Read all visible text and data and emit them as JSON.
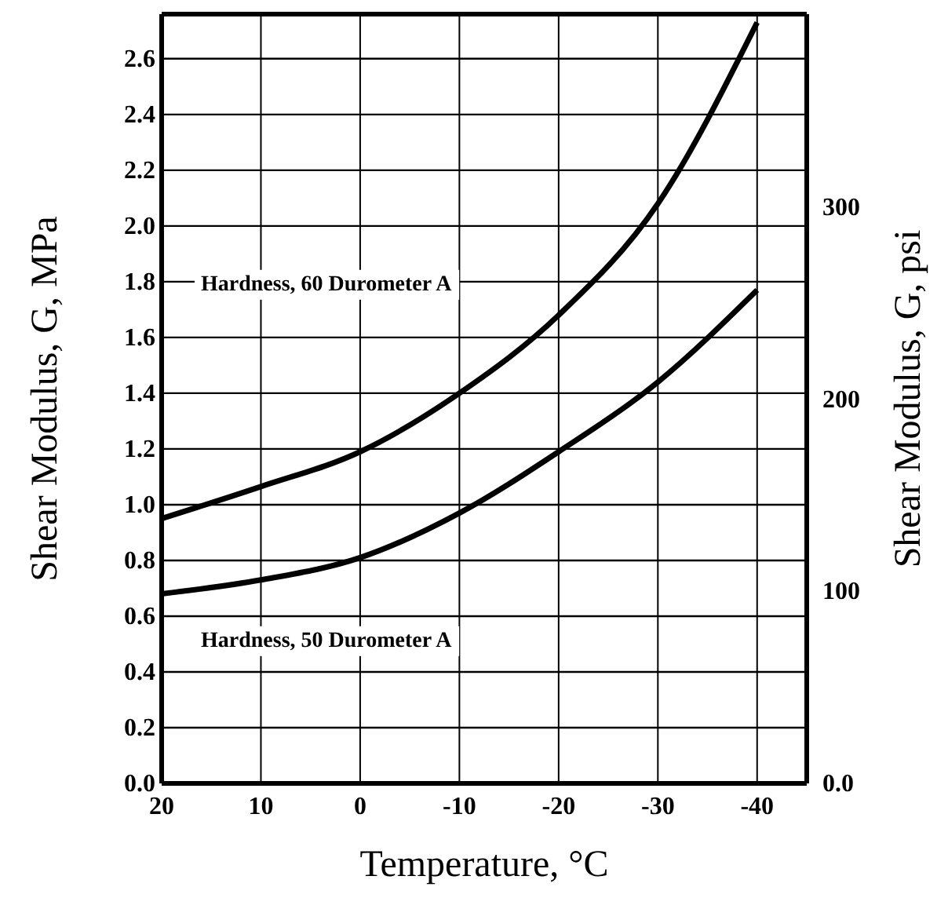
{
  "chart_data": {
    "type": "line",
    "xlabel": "Temperature, °C",
    "ylabel": "Shear Modulus, G, MPa",
    "y2label": "Shear Modulus, G, psi",
    "x": [
      20,
      10,
      0,
      -10,
      -20,
      -30,
      -40
    ],
    "series": [
      {
        "color": "#000000",
        "values": [
          0.95,
          1.065,
          1.19,
          1.4,
          1.68,
          2.08,
          2.73
        ]
      },
      {
        "color": "#000000",
        "values": [
          0.68,
          0.73,
          0.81,
          0.97,
          1.19,
          1.44,
          1.77
        ]
      }
    ],
    "xlim": [
      20,
      -45
    ],
    "xticks": [
      20,
      10,
      0,
      -10,
      -20,
      -30,
      -40
    ],
    "ylim": [
      0,
      2.76
    ],
    "yticks": [
      {
        "value": 0,
        "label": "0.0"
      },
      {
        "value": 0.2,
        "label": "0.2"
      },
      {
        "value": 0.4,
        "label": "0.4"
      },
      {
        "value": 0.6,
        "label": "0.6"
      },
      {
        "value": 0.8,
        "label": "0.8"
      },
      {
        "value": 1,
        "label": "1.0"
      },
      {
        "value": 1.2,
        "label": "1.2"
      },
      {
        "value": 1.4,
        "label": "1.4"
      },
      {
        "value": 1.6,
        "label": "1.6"
      },
      {
        "value": 1.8,
        "label": "1.8"
      },
      {
        "value": 2,
        "label": "2.0"
      },
      {
        "value": 2.2,
        "label": "2.2"
      },
      {
        "value": 2.4,
        "label": "2.4"
      },
      {
        "value": 2.6,
        "label": "2.6"
      }
    ],
    "y2lim": [
      0,
      400.3
    ],
    "y2ticks": [
      {
        "value": 0,
        "label": "0.0"
      },
      100,
      200,
      300
    ],
    "grid": true,
    "marker": "none",
    "line_style": "solid",
    "annotations": [
      "Hardness, 60 Durometer A",
      "Hardness, 50 Durometer A"
    ]
  }
}
